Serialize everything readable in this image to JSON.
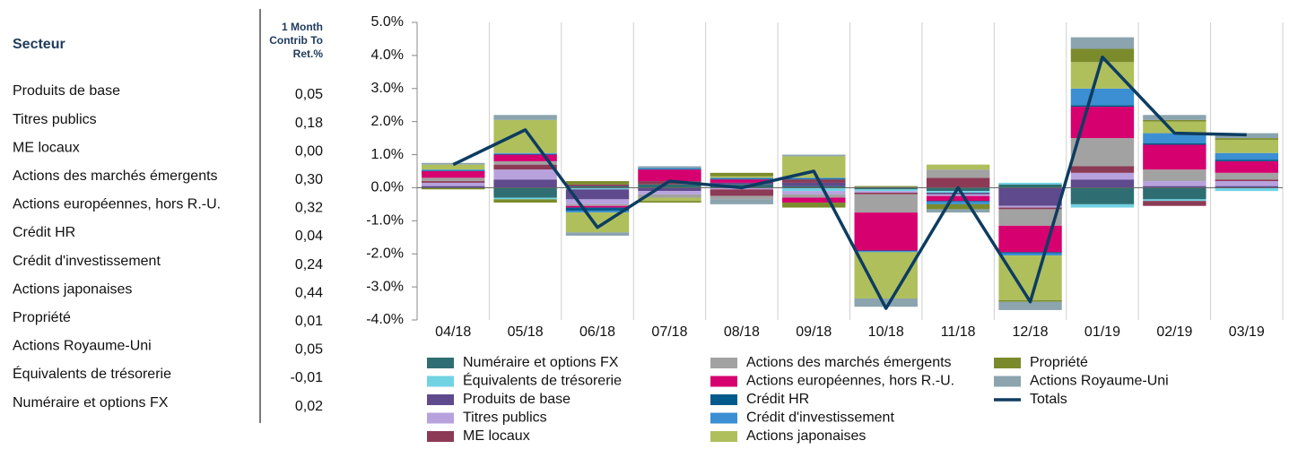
{
  "table": {
    "header": {
      "sector": "Secteur",
      "contrib": [
        "1 Month",
        "Contrib To",
        "Ret.%"
      ]
    },
    "rows": [
      [
        "Produits de base",
        "0,05"
      ],
      [
        "Titres publics",
        "0,18"
      ],
      [
        "ME locaux",
        "0,00"
      ],
      [
        "Actions des marchés émergents",
        "0,30"
      ],
      [
        "Actions européennes, hors R.-U.",
        "0,32"
      ],
      [
        "Crédit HR",
        "0,04"
      ],
      [
        "Crédit d'investissement",
        "0,24"
      ],
      [
        "Actions japonaises",
        "0,44"
      ],
      [
        "Propriété",
        "0,01"
      ],
      [
        "Actions Royaume-Uni",
        "0,05"
      ],
      [
        "Équivalents de trésorerie",
        "-0,01"
      ],
      [
        "Numéraire et options FX",
        "0,02"
      ]
    ]
  },
  "chart_data": {
    "type": "bar",
    "stacked": true,
    "categories": [
      "04/18",
      "05/18",
      "06/18",
      "07/18",
      "08/18",
      "09/18",
      "10/18",
      "11/18",
      "12/18",
      "01/19",
      "02/19",
      "03/19"
    ],
    "ylim": [
      -4,
      5
    ],
    "yticks": [
      {
        "value": -4,
        "label": "-4.0%"
      },
      {
        "value": -3,
        "label": "-3.0%"
      },
      {
        "value": -2,
        "label": "-2.0%"
      },
      {
        "value": -1,
        "label": "-1.0%"
      },
      {
        "value": 0,
        "label": "0.0%"
      },
      {
        "value": 1,
        "label": "1.0%"
      },
      {
        "value": 2,
        "label": "2.0%"
      },
      {
        "value": 3,
        "label": "3.0%"
      },
      {
        "value": 4,
        "label": "4.0%"
      },
      {
        "value": 5,
        "label": "5.0%"
      }
    ],
    "grid": "x",
    "series": [
      {
        "name": "Numéraire et options FX",
        "color": "#2e6e72",
        "values": [
          0,
          -0.3,
          0.05,
          0.1,
          0.1,
          0.05,
          -0.05,
          -0.1,
          0.1,
          -0.5,
          -0.35,
          0
        ]
      },
      {
        "name": "Équivalents de trésorerie",
        "color": "#6fd3e3",
        "values": [
          0,
          -0.05,
          -0.05,
          0,
          0,
          -0.1,
          -0.05,
          -0.05,
          0.05,
          -0.1,
          -0.05,
          -0.1
        ]
      },
      {
        "name": "Produits de base",
        "color": "#5e4a8c",
        "values": [
          0.05,
          0.25,
          -0.3,
          -0.1,
          0.05,
          0.1,
          0.02,
          -0.05,
          -0.55,
          0.25,
          0.05,
          0.05
        ]
      },
      {
        "name": "Titres publics",
        "color": "#b7a2de",
        "values": [
          0.1,
          0.3,
          -0.15,
          -0.1,
          -0.05,
          -0.1,
          -0.05,
          -0.05,
          -0.05,
          0.2,
          0.15,
          0.15
        ]
      },
      {
        "name": "ME locaux",
        "color": "#8c3a55",
        "values": [
          0.05,
          0.15,
          0.05,
          0.1,
          -0.2,
          0.1,
          -0.05,
          0.3,
          -0.05,
          0.2,
          -0.15,
          0.05
        ]
      },
      {
        "name": "Actions des marchés émergents",
        "color": "#a2a2a2",
        "values": [
          0.1,
          0.1,
          -0.05,
          -0.1,
          -0.1,
          -0.1,
          -0.55,
          0.25,
          -0.5,
          0.85,
          0.35,
          0.2
        ]
      },
      {
        "name": "Actions européennes, hors R.-U.",
        "color": "#d6006f",
        "values": [
          0.2,
          0.2,
          -0.05,
          0.35,
          0.1,
          -0.15,
          -1.15,
          -0.15,
          -0.8,
          0.95,
          0.75,
          0.35
        ]
      },
      {
        "name": "Crédit HR",
        "color": "#005a8c",
        "values": [
          0.02,
          0.02,
          -0.1,
          0.02,
          0.02,
          0.02,
          -0.02,
          -0.03,
          -0.03,
          0.05,
          0.05,
          0.05
        ]
      },
      {
        "name": "Crédit d'investissement",
        "color": "#3b8fd2",
        "values": [
          0.03,
          0.03,
          -0.05,
          0.03,
          0.03,
          0.03,
          -0.03,
          -0.07,
          -0.07,
          0.5,
          0.3,
          0.2
        ]
      },
      {
        "name": "Actions japonaises",
        "color": "#afbf5c",
        "values": [
          0.15,
          1.0,
          -0.6,
          -0.1,
          0.05,
          0.65,
          -1.4,
          0.15,
          -1.35,
          0.8,
          0.35,
          0.4
        ]
      },
      {
        "name": "Propriété",
        "color": "#7b8b2b",
        "values": [
          -0.05,
          -0.1,
          0.1,
          -0.05,
          0.1,
          -0.15,
          0.03,
          -0.15,
          -0.05,
          0.4,
          0.05,
          0.05
        ]
      },
      {
        "name": "Actions Royaume-Uni",
        "color": "#8ba4ae",
        "values": [
          0.05,
          0.15,
          -0.1,
          0.05,
          -0.15,
          0.05,
          -0.25,
          -0.1,
          -0.25,
          0.35,
          0.15,
          0.15
        ]
      },
      {
        "name": "Totals",
        "type": "line",
        "color": "#0d3c61",
        "values": [
          0.7,
          1.75,
          -1.2,
          0.2,
          0,
          0.5,
          -3.65,
          0,
          -3.45,
          3.95,
          1.65,
          1.6
        ]
      }
    ]
  }
}
